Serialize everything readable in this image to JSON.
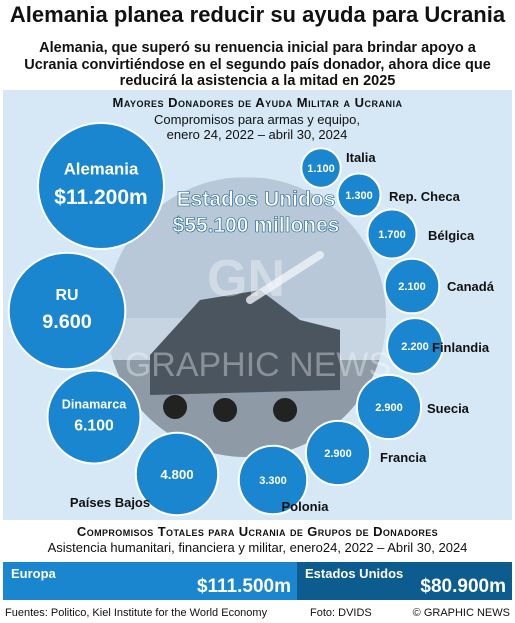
{
  "headline": "Alemania planea reducir su ayuda para Ucrania",
  "intro": "Alemania, que superó su renuencia inicial para brindar apoyo a Ucrania convirtiéndose en el segundo país donador, ahora dice que reducirá la asistencia a la mitad en 2025",
  "chart_data": [
    {
      "type": "bubble",
      "title": "Mayores Donadores de Ayuda Militar a Ucrania",
      "subtitle": "Compromisos para armas y equipo, enero 24, 2022 – abril 30, 2024",
      "center": {
        "name": "Estados Unidos",
        "label": "$55.100 millones",
        "value": 55100
      },
      "donors": [
        {
          "name": "Alemania",
          "label": "$11.200m",
          "value": 11200
        },
        {
          "name": "RU",
          "label": "9.600",
          "value": 9600
        },
        {
          "name": "Dinamarca",
          "label": "6.100",
          "value": 6100
        },
        {
          "name": "Países Bajos",
          "label": "4.800",
          "value": 4800
        },
        {
          "name": "Polonia",
          "label": "3.300",
          "value": 3300
        },
        {
          "name": "Francia",
          "label": "2.900",
          "value": 2900
        },
        {
          "name": "Suecia",
          "label": "2.900",
          "value": 2900
        },
        {
          "name": "Finlandia",
          "label": "2.200",
          "value": 2200
        },
        {
          "name": "Canadá",
          "label": "2.100",
          "value": 2100
        },
        {
          "name": "Bélgica",
          "label": "1.700",
          "value": 1700
        },
        {
          "name": "Rep. Checa",
          "label": "1.300",
          "value": 1300
        },
        {
          "name": "Italia",
          "label": "1.100",
          "value": 1100
        }
      ]
    },
    {
      "type": "bar",
      "title": "Compromisos Totales para Ucrania de Grupos de Donadores",
      "subtitle": "Asistencia humanitari, financiera y militar, enero24, 2022 – Abril 30, 2024",
      "categories": [
        "Europa",
        "Estados Unidos"
      ],
      "values": [
        111500,
        80900
      ],
      "labels": [
        "$111.500m",
        "$80.900m"
      ]
    }
  ],
  "watermark": {
    "logo": "GN",
    "text": "GRAPHIC NEWS"
  },
  "footer": {
    "sources": "Fuentes: Politico, Kiel Institute for the World Economy",
    "photo": "Foto: DVIDS",
    "credit": "© GRAPHIC NEWS"
  },
  "colors": {
    "bubble": "#1a86d0",
    "bubble_edge": "#ffffff",
    "panel": "#d6e8f6",
    "us_bar": "#0d5c8f"
  }
}
